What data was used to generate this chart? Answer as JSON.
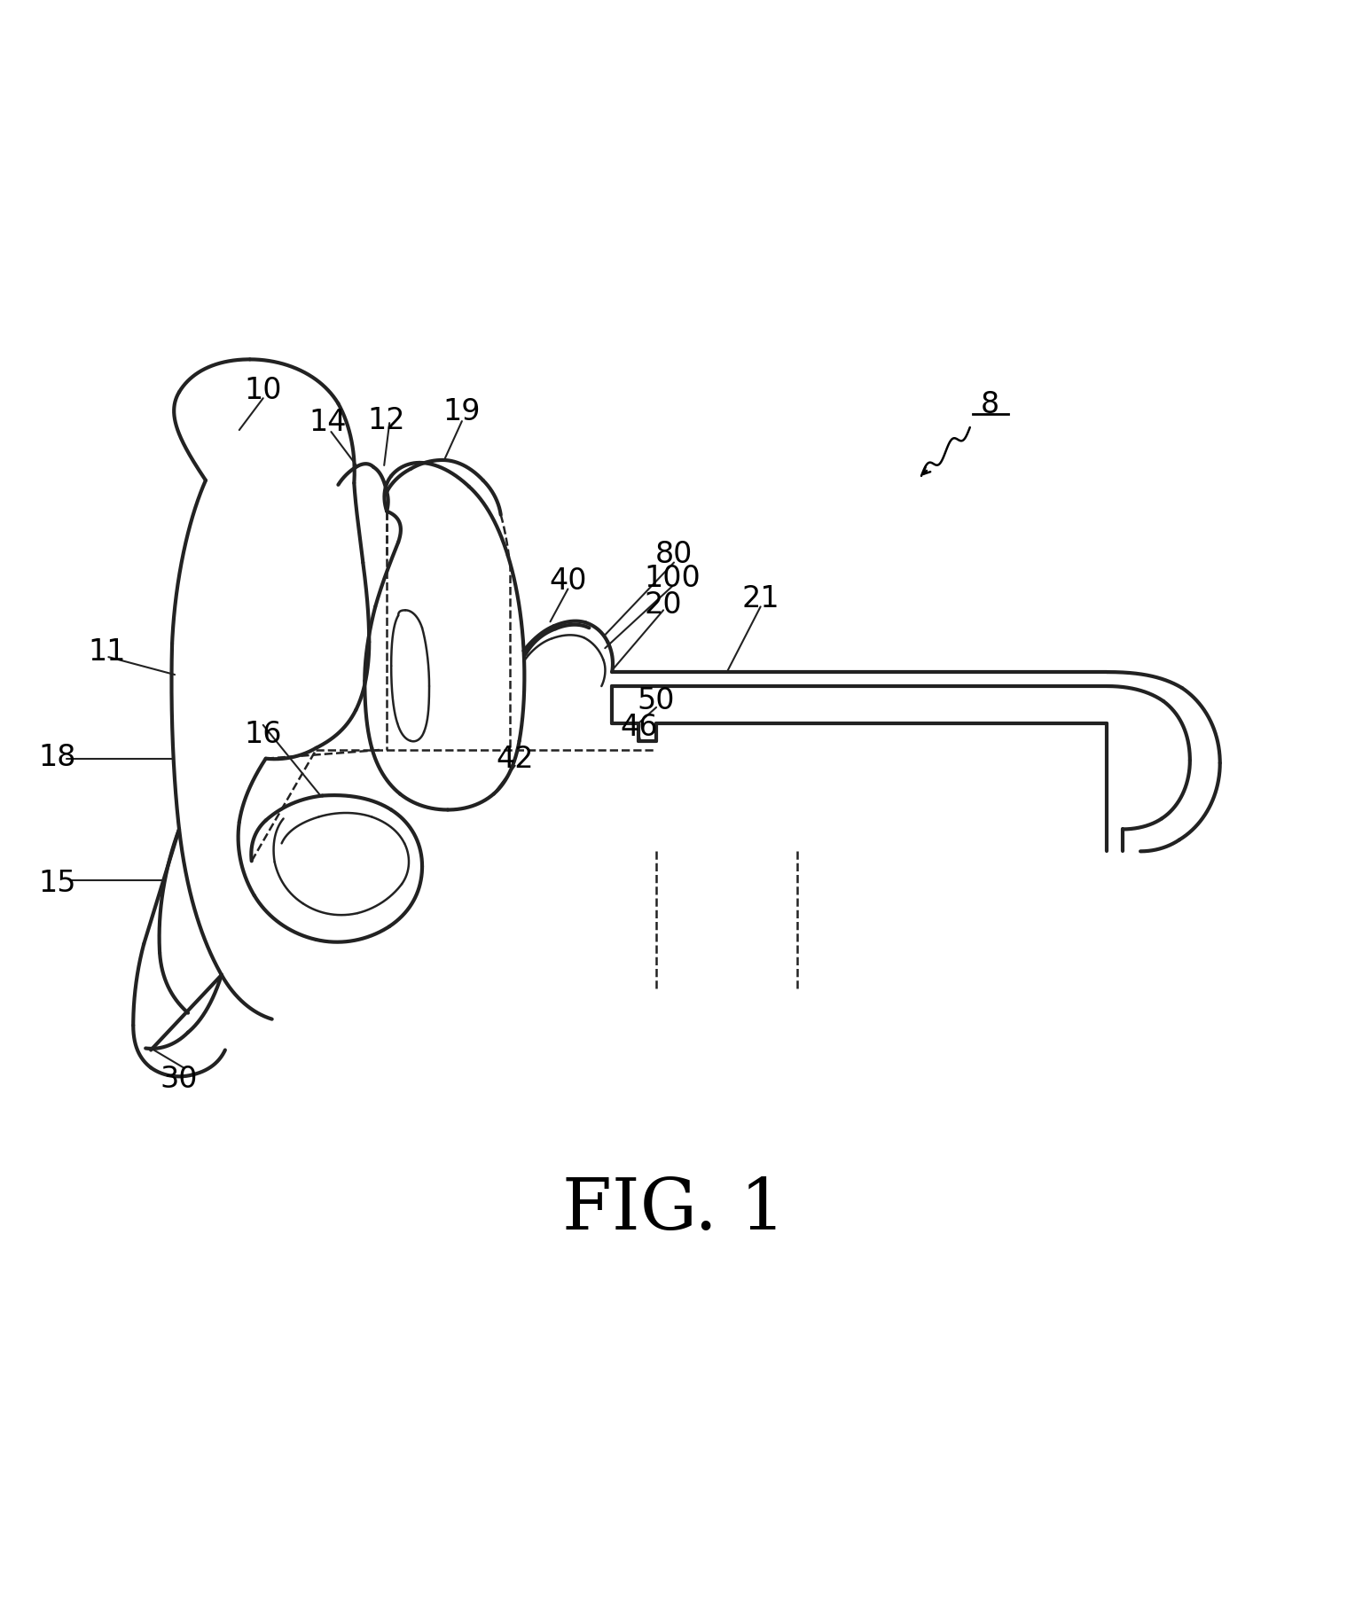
{
  "bg_color": "#ffffff",
  "line_color": "#222222",
  "fig_width": 15.19,
  "fig_height": 18.33,
  "fig_label": "FIG. 1",
  "label_size": 24,
  "lw_main": 3.0,
  "lw_thin": 1.8
}
